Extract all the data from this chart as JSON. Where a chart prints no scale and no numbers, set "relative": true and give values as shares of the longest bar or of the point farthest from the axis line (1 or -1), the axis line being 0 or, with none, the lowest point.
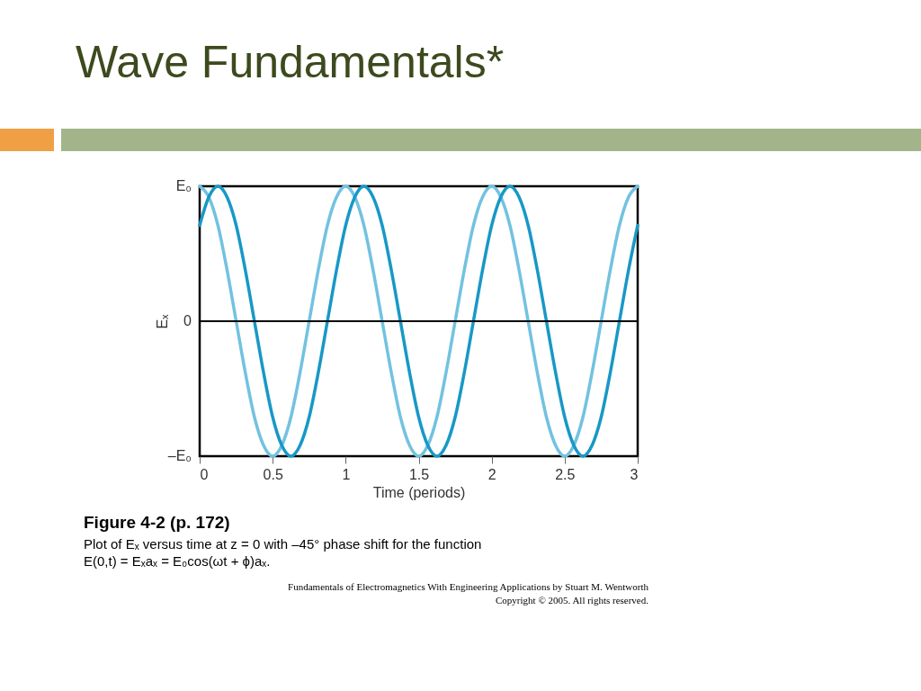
{
  "chart_data": {
    "type": "line",
    "title": "Wave Fundamentals*",
    "xlabel": "Time (periods)",
    "ylabel": "Eₓ",
    "x": [
      0,
      0.0625,
      0.125,
      0.1875,
      0.25,
      0.3125,
      0.375,
      0.4375,
      0.5,
      0.5625,
      0.625,
      0.6875,
      0.75,
      0.8125,
      0.875,
      0.9375,
      1,
      1.0625,
      1.125,
      1.1875,
      1.25,
      1.3125,
      1.375,
      1.4375,
      1.5,
      1.5625,
      1.625,
      1.6875,
      1.75,
      1.8125,
      1.875,
      1.9375,
      2,
      2.0625,
      2.125,
      2.1875,
      2.25,
      2.3125,
      2.375,
      2.4375,
      2.5,
      2.5625,
      2.625,
      2.6875,
      2.75,
      2.8125,
      2.875,
      2.9375,
      3
    ],
    "series": [
      {
        "color": "#72c2e0",
        "values": [
          1,
          0.92,
          0.71,
          0.38,
          0,
          -0.38,
          -0.71,
          -0.92,
          -1,
          -0.92,
          -0.71,
          -0.38,
          0,
          0.38,
          0.71,
          0.92,
          1,
          0.92,
          0.71,
          0.38,
          0,
          -0.38,
          -0.71,
          -0.92,
          -1,
          -0.92,
          -0.71,
          -0.38,
          0,
          0.38,
          0.71,
          0.92,
          1,
          0.92,
          0.71,
          0.38,
          0,
          -0.38,
          -0.71,
          -0.92,
          -1,
          -0.92,
          -0.71,
          -0.38,
          0,
          0.38,
          0.71,
          0.92,
          1
        ]
      },
      {
        "color": "#1898c6",
        "values": [
          0.71,
          0.92,
          1,
          0.92,
          0.71,
          0.38,
          0,
          -0.38,
          -0.71,
          -0.92,
          -1,
          -0.92,
          -0.71,
          -0.38,
          0,
          0.38,
          0.71,
          0.92,
          1,
          0.92,
          0.71,
          0.38,
          0,
          -0.38,
          -0.71,
          -0.92,
          -1,
          -0.92,
          -0.71,
          -0.38,
          0,
          0.38,
          0.71,
          0.92,
          1,
          0.92,
          0.71,
          0.38,
          0,
          -0.38,
          -0.71,
          -0.92,
          -1,
          -0.92,
          -0.71,
          -0.38,
          0,
          0.38,
          0.71
        ]
      }
    ],
    "xlim": [
      0,
      3
    ],
    "xticks": [
      0,
      0.5,
      1,
      1.5,
      2,
      2.5,
      3
    ],
    "relative": true,
    "ref_lines": [
      {
        "axis": "y",
        "value": 0,
        "color": "#000000"
      }
    ],
    "annotations": [
      "Figure 4-2  (p. 172)",
      "Plot of Eₓ versus time at z = 0 with –45° phase shift for the function",
      "E(0,t) = Eₓaₓ = E₀cos(ωt + ϕ)aₓ.",
      "Fundamentals of Electromagnetics With Engineering Applications by Stuart M. Wentworth",
      "Copyright © 2005. All rights reserved.",
      "E₀",
      "0",
      "–E₀"
    ]
  }
}
